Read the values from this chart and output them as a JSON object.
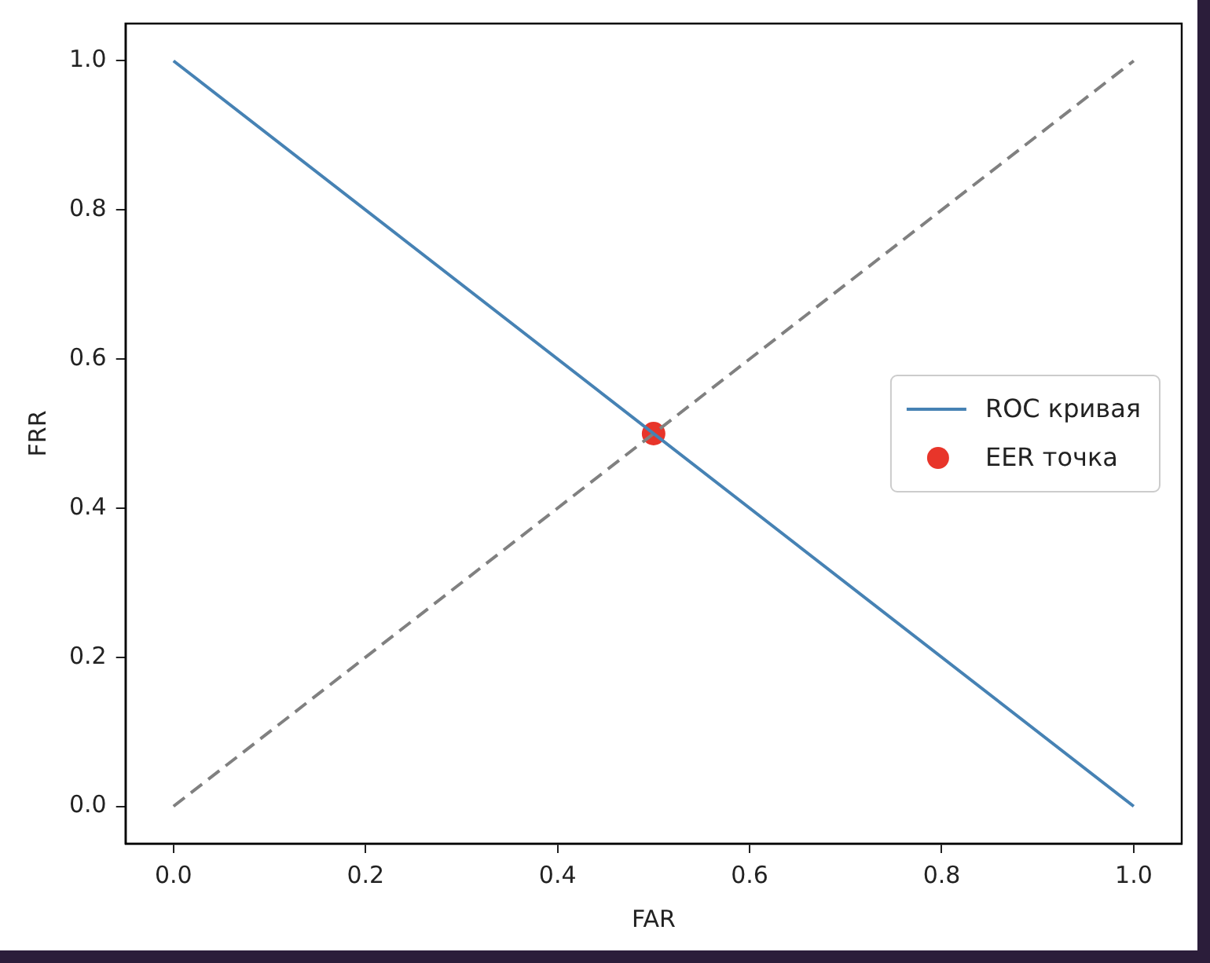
{
  "chart_data": {
    "type": "line",
    "xlabel": "FAR",
    "ylabel": "FRR",
    "xlim": [
      -0.05,
      1.05
    ],
    "ylim": [
      -0.05,
      1.05
    ],
    "xticks": [
      {
        "value": 0,
        "label": "0.0"
      },
      {
        "value": 0.2,
        "label": "0.2"
      },
      {
        "value": 0.4,
        "label": "0.4"
      },
      {
        "value": 0.6,
        "label": "0.6"
      },
      {
        "value": 0.8,
        "label": "0.8"
      },
      {
        "value": 1,
        "label": "1.0"
      }
    ],
    "yticks": [
      {
        "value": 0,
        "label": "0.0"
      },
      {
        "value": 0.2,
        "label": "0.2"
      },
      {
        "value": 0.4,
        "label": "0.4"
      },
      {
        "value": 0.6,
        "label": "0.6"
      },
      {
        "value": 0.8,
        "label": "0.8"
      },
      {
        "value": 1,
        "label": "1.0"
      }
    ],
    "grid": false,
    "legend": "right",
    "series": [
      {
        "name": "ROC кривая",
        "color": "#4682b4",
        "x": [
          0,
          1
        ],
        "values": [
          1,
          0
        ],
        "line_style": "solid"
      },
      {
        "type": "line",
        "color": "#808080",
        "x": [
          0,
          1
        ],
        "values": [
          0,
          1
        ],
        "line_style": "dashed"
      },
      {
        "name": "EER точка",
        "type": "scatter",
        "color": "#e8352a",
        "x": [
          0.5
        ],
        "values": [
          0.5
        ],
        "marker": "circle"
      }
    ]
  }
}
